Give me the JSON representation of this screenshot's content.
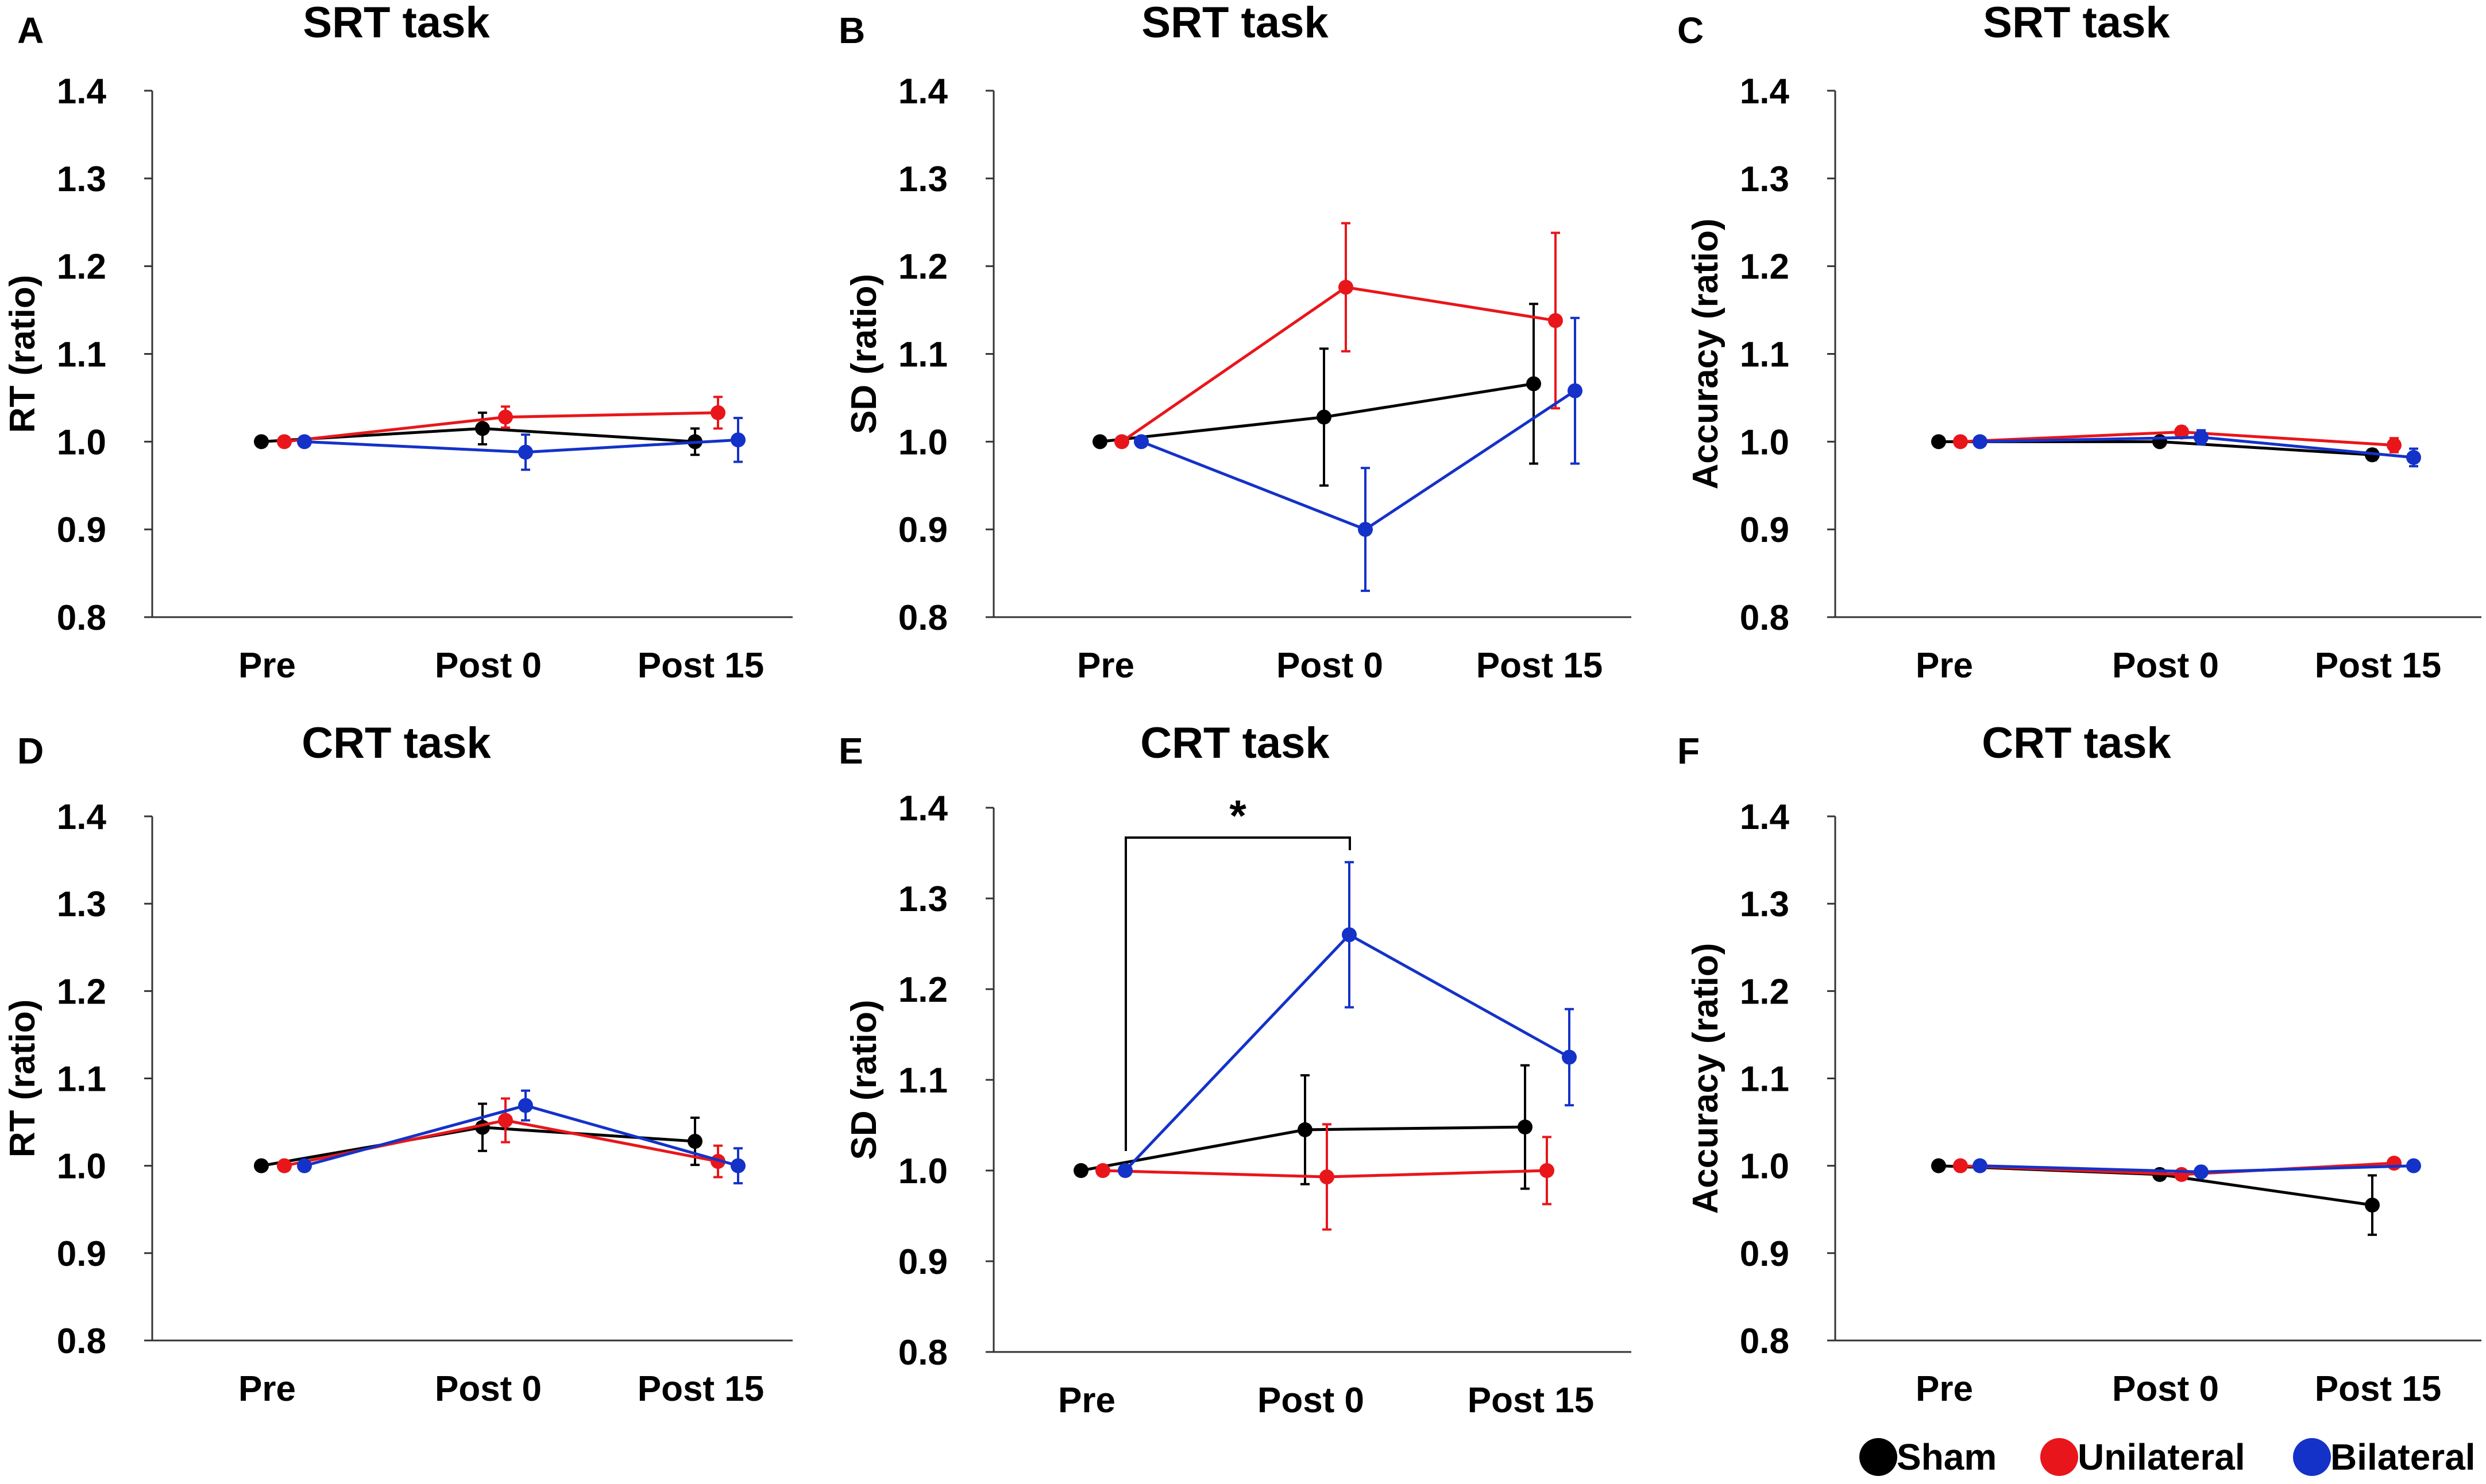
{
  "colors": {
    "Sham": "#000000",
    "Unilateral": "#e8161b",
    "Bilateral": "#1432c8"
  },
  "legend": [
    {
      "label": "Sham",
      "color": "#000000"
    },
    {
      "label": "Unilateral",
      "color": "#e8161b"
    },
    {
      "label": "Bilateral",
      "color": "#1432c8"
    }
  ],
  "chart_data": [
    {
      "panel": "A",
      "type": "line",
      "title": "SRT task",
      "xlabel": "",
      "ylabel": "RT (ratio)",
      "categories": [
        "Pre",
        "Post 0",
        "Post 15"
      ],
      "ylim": [
        0.8,
        1.4
      ],
      "yticks": [
        "0.8",
        "0.9",
        "1.0",
        "1.1",
        "1.2",
        "1.3",
        "1.4"
      ],
      "series": [
        {
          "name": "Sham",
          "values": [
            1.0,
            1.015,
            1.0
          ],
          "errors": [
            0,
            0.018,
            0.015
          ]
        },
        {
          "name": "Unilateral",
          "values": [
            1.0,
            1.028,
            1.033
          ],
          "errors": [
            0,
            0.012,
            0.018
          ]
        },
        {
          "name": "Bilateral",
          "values": [
            1.0,
            0.988,
            1.002
          ],
          "errors": [
            0,
            0.02,
            0.025
          ]
        }
      ]
    },
    {
      "panel": "B",
      "type": "line",
      "title": "SRT task",
      "xlabel": "",
      "ylabel": "SD (ratio)",
      "categories": [
        "Pre",
        "Post 0",
        "Post 15"
      ],
      "ylim": [
        0.8,
        1.4
      ],
      "yticks": [
        "0.8",
        "0.9",
        "1.0",
        "1.1",
        "1.2",
        "1.3",
        "1.4"
      ],
      "series": [
        {
          "name": "Sham",
          "values": [
            1.0,
            1.028,
            1.066
          ],
          "errors": [
            0,
            0.078,
            0.091
          ]
        },
        {
          "name": "Unilateral",
          "values": [
            1.0,
            1.176,
            1.138
          ],
          "errors": [
            0,
            0.073,
            0.1
          ]
        },
        {
          "name": "Bilateral",
          "values": [
            1.0,
            0.9,
            1.058
          ],
          "errors": [
            0,
            0.07,
            0.083
          ]
        }
      ]
    },
    {
      "panel": "C",
      "type": "line",
      "title": "SRT task",
      "xlabel": "",
      "ylabel": "Accuracy (ratio)",
      "categories": [
        "Pre",
        "Post 0",
        "Post 15"
      ],
      "ylim": [
        0.8,
        1.4
      ],
      "yticks": [
        "0.8",
        "0.9",
        "1.0",
        "1.1",
        "1.2",
        "1.3",
        "1.4"
      ],
      "series": [
        {
          "name": "Sham",
          "values": [
            1.0,
            1.0,
            0.985
          ],
          "errors": [
            0,
            0.004,
            0.006
          ]
        },
        {
          "name": "Unilateral",
          "values": [
            1.0,
            1.011,
            0.996
          ],
          "errors": [
            0,
            0.006,
            0.008
          ]
        },
        {
          "name": "Bilateral",
          "values": [
            1.0,
            1.005,
            0.982
          ],
          "errors": [
            0,
            0.008,
            0.01
          ]
        }
      ]
    },
    {
      "panel": "D",
      "type": "line",
      "title": "CRT task",
      "xlabel": "",
      "ylabel": "RT (ratio)",
      "categories": [
        "Pre",
        "Post 0",
        "Post 15"
      ],
      "ylim": [
        0.8,
        1.4
      ],
      "yticks": [
        "0.8",
        "0.9",
        "1.0",
        "1.1",
        "1.2",
        "1.3",
        "1.4"
      ],
      "series": [
        {
          "name": "Sham",
          "values": [
            1.0,
            1.044,
            1.028
          ],
          "errors": [
            0,
            0.027,
            0.027
          ]
        },
        {
          "name": "Unilateral",
          "values": [
            1.0,
            1.052,
            1.005
          ],
          "errors": [
            0,
            0.025,
            0.018
          ]
        },
        {
          "name": "Bilateral",
          "values": [
            1.0,
            1.069,
            1.0
          ],
          "errors": [
            0,
            0.017,
            0.02
          ]
        }
      ]
    },
    {
      "panel": "E",
      "type": "line",
      "title": "CRT task",
      "xlabel": "",
      "ylabel": "SD (ratio)",
      "categories": [
        "Pre",
        "Post 0",
        "Post 15"
      ],
      "ylim": [
        0.8,
        1.4
      ],
      "yticks": [
        "0.8",
        "0.9",
        "1.0",
        "1.1",
        "1.2",
        "1.3",
        "1.4"
      ],
      "series": [
        {
          "name": "Sham",
          "values": [
            1.0,
            1.045,
            1.048
          ],
          "errors": [
            0,
            0.06,
            0.068
          ]
        },
        {
          "name": "Unilateral",
          "values": [
            1.0,
            0.993,
            1.0
          ],
          "errors": [
            0,
            0.058,
            0.037
          ]
        },
        {
          "name": "Bilateral",
          "values": [
            1.0,
            1.26,
            1.125
          ],
          "errors": [
            0,
            0.08,
            0.053
          ]
        }
      ],
      "annotation": {
        "text": "*",
        "from_category": "Pre",
        "to_category": "Post 0",
        "series": "Bilateral"
      }
    },
    {
      "panel": "F",
      "type": "line",
      "title": "CRT task",
      "xlabel": "",
      "ylabel": "Accuracy (ratio)",
      "categories": [
        "Pre",
        "Post 0",
        "Post 15"
      ],
      "ylim": [
        0.8,
        1.4
      ],
      "yticks": [
        "0.8",
        "0.9",
        "1.0",
        "1.1",
        "1.2",
        "1.3",
        "1.4"
      ],
      "series": [
        {
          "name": "Sham",
          "values": [
            1.0,
            0.99,
            0.955
          ],
          "errors": [
            0,
            0.005,
            0.034
          ]
        },
        {
          "name": "Unilateral",
          "values": [
            1.0,
            0.99,
            1.003
          ],
          "errors": [
            0,
            0.005,
            0.004
          ]
        },
        {
          "name": "Bilateral",
          "values": [
            1.0,
            0.993,
            1.0
          ],
          "errors": [
            0,
            0.004,
            0.004
          ]
        }
      ]
    }
  ]
}
